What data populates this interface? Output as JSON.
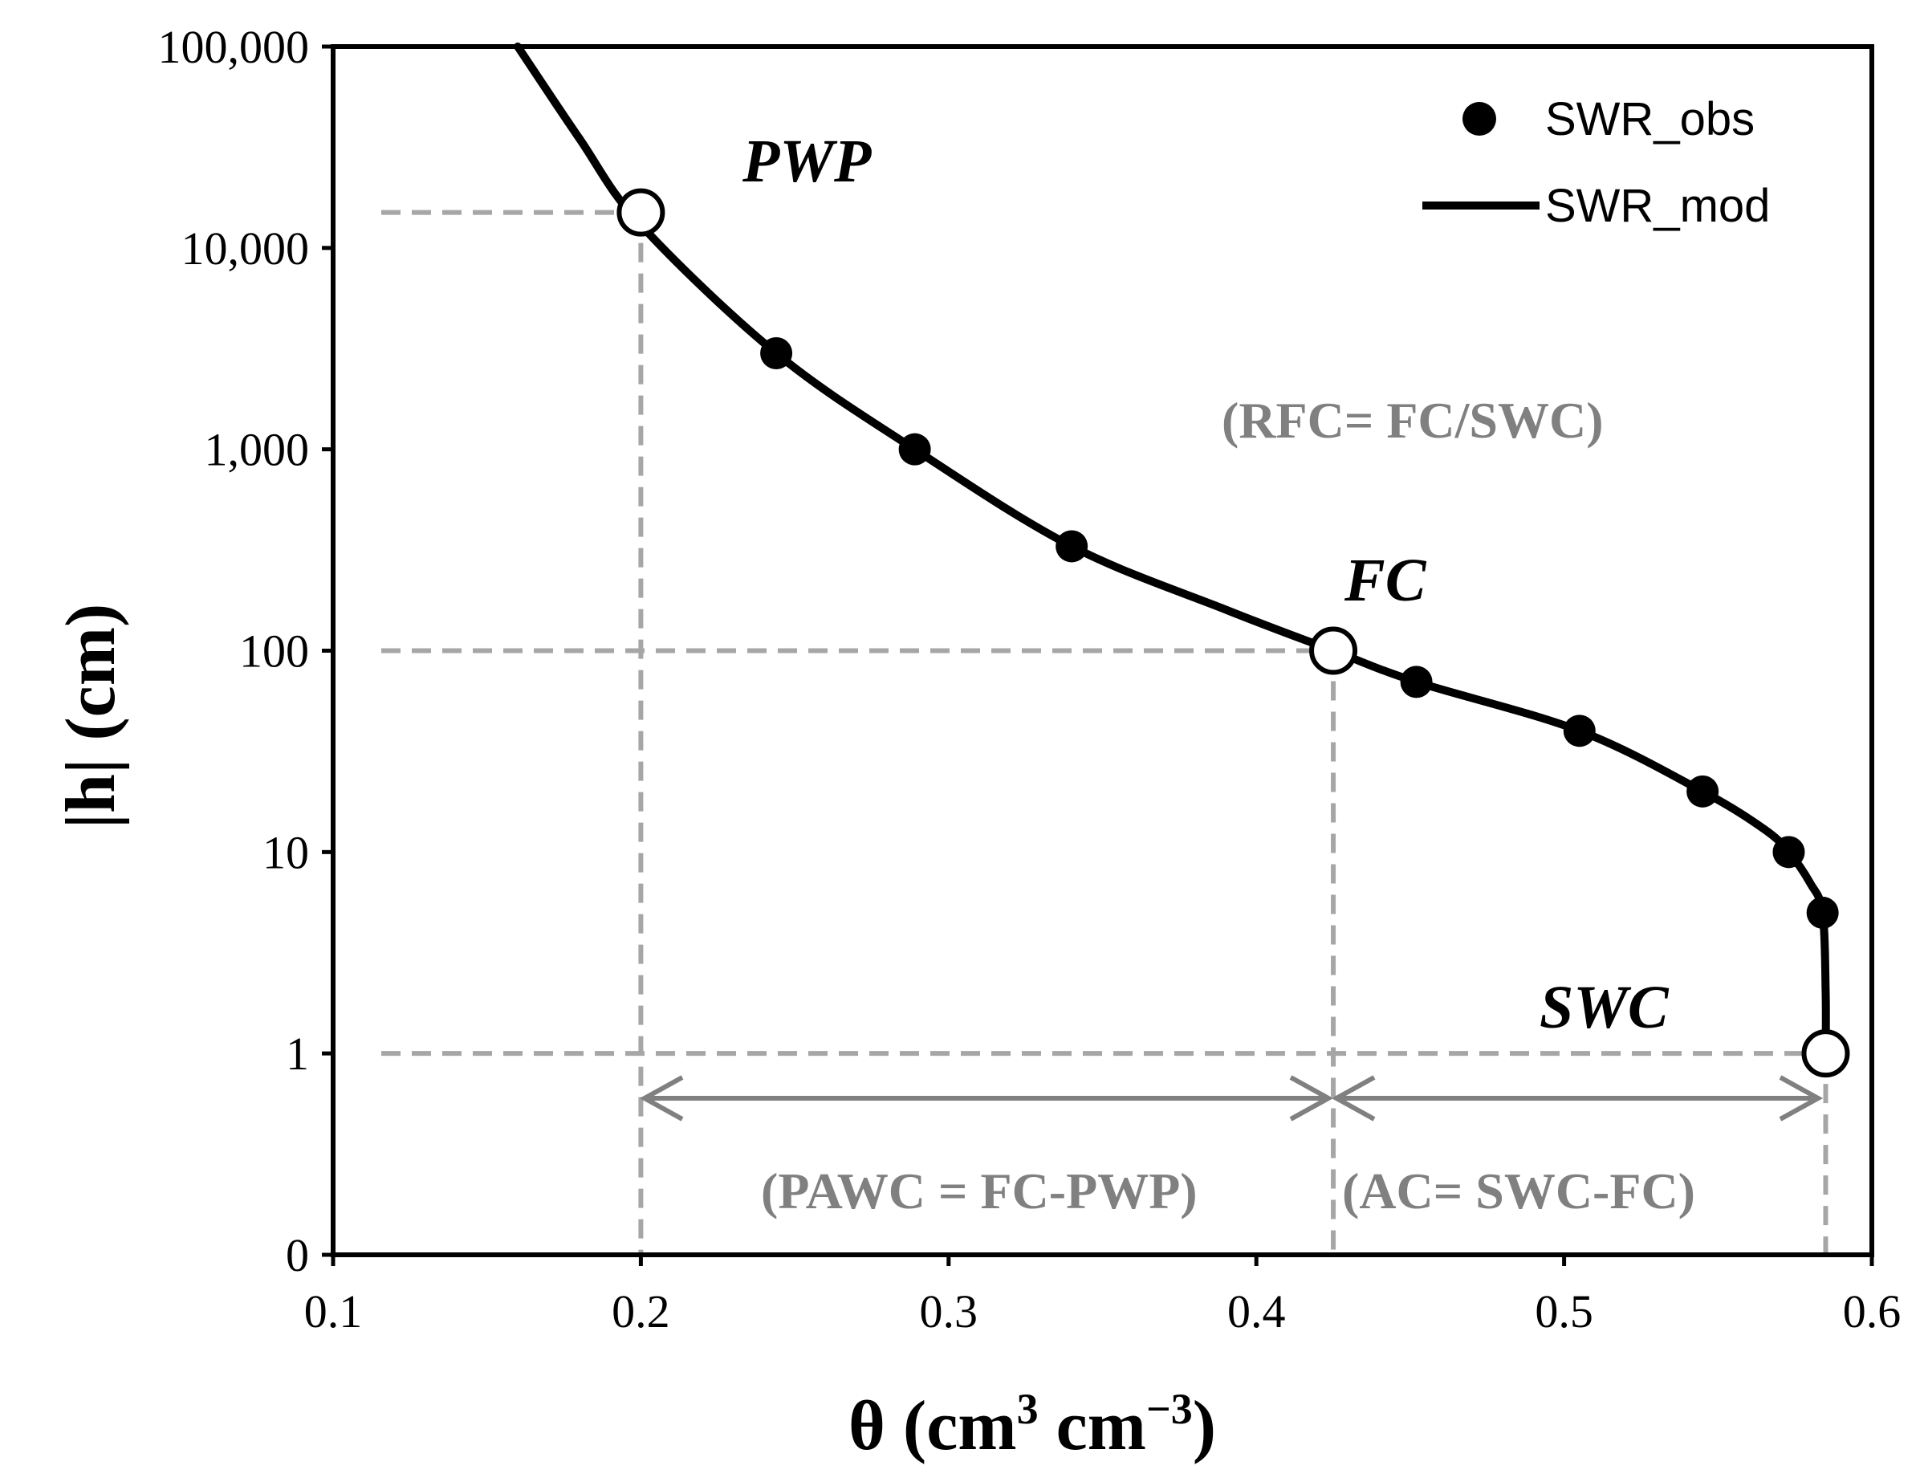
{
  "chart_data": {
    "type": "line",
    "x_label": "θ (cm",
    "x_label_sup": "3",
    "x_label_mid": " cm",
    "x_label_sup2": "−3",
    "x_label_end": ")",
    "y_label": "|h| (cm)",
    "xlim": [
      0.1,
      0.6
    ],
    "ylim": [
      0,
      100000
    ],
    "x_ticks": [
      {
        "value": 0.1,
        "label": "0.1"
      },
      {
        "value": 0.2,
        "label": "0.2"
      },
      {
        "value": 0.3,
        "label": "0.3"
      },
      {
        "value": 0.4,
        "label": "0.4"
      },
      {
        "value": 0.5,
        "label": "0.5"
      },
      {
        "value": 0.6,
        "label": "0.6"
      }
    ],
    "y_ticks": [
      {
        "value": 100000,
        "label": "100,000"
      },
      {
        "value": 10000,
        "label": "10,000"
      },
      {
        "value": 1000,
        "label": "1,000"
      },
      {
        "value": 100,
        "label": "100"
      },
      {
        "value": 10,
        "label": "10"
      },
      {
        "value": 1,
        "label": "1"
      },
      {
        "value": 0,
        "label": "0"
      }
    ],
    "series": [
      {
        "name": "SWR_obs",
        "kind": "scatter",
        "points": [
          {
            "x": 0.244,
            "y": 3000
          },
          {
            "x": 0.289,
            "y": 1000
          },
          {
            "x": 0.34,
            "y": 330
          },
          {
            "x": 0.452,
            "y": 70
          },
          {
            "x": 0.505,
            "y": 40
          },
          {
            "x": 0.545,
            "y": 20
          },
          {
            "x": 0.573,
            "y": 10
          },
          {
            "x": 0.584,
            "y": 5
          }
        ]
      },
      {
        "name": "SWR_mod",
        "kind": "line",
        "points": [
          {
            "x": 0.16,
            "y": 100000
          },
          {
            "x": 0.18,
            "y": 35000
          },
          {
            "x": 0.2,
            "y": 13000
          },
          {
            "x": 0.244,
            "y": 3000
          },
          {
            "x": 0.289,
            "y": 1000
          },
          {
            "x": 0.34,
            "y": 330
          },
          {
            "x": 0.39,
            "y": 160
          },
          {
            "x": 0.425,
            "y": 100
          },
          {
            "x": 0.452,
            "y": 70
          },
          {
            "x": 0.505,
            "y": 40
          },
          {
            "x": 0.545,
            "y": 20
          },
          {
            "x": 0.565,
            "y": 13
          },
          {
            "x": 0.573,
            "y": 10
          },
          {
            "x": 0.58,
            "y": 7
          },
          {
            "x": 0.584,
            "y": 5
          },
          {
            "x": 0.585,
            "y": 2
          },
          {
            "x": 0.585,
            "y": 1
          }
        ]
      }
    ],
    "key_points": [
      {
        "name": "PWP",
        "label": "PWP",
        "x": 0.2,
        "y": 15000
      },
      {
        "name": "FC",
        "label": "FC",
        "x": 0.425,
        "y": 100
      },
      {
        "name": "SWC",
        "label": "SWC",
        "x": 0.585,
        "y": 1
      }
    ],
    "annotations": {
      "rfc": "(RFC= FC/SWC)",
      "pawc": "(PAWC = FC-PWP)",
      "ac": "(AC= SWC-FC)"
    },
    "legend": {
      "position": "top-right",
      "obs_label": "SWR_obs",
      "mod_label": "SWR_mod"
    }
  }
}
